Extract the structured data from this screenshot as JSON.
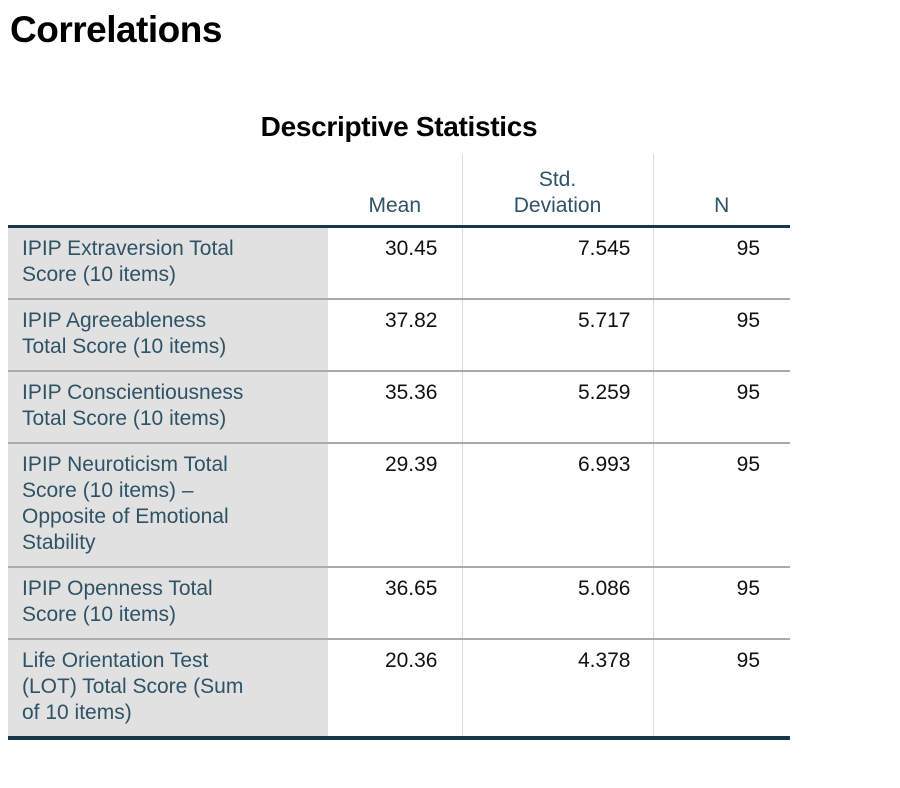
{
  "page": {
    "title": "Correlations"
  },
  "table": {
    "caption": "Descriptive Statistics",
    "stub_header": "",
    "columns": [
      "Mean",
      "Std.\nDeviation",
      "N"
    ],
    "rows": [
      {
        "label": "IPIP Extraversion Total\nScore (10 items)",
        "mean": "30.45",
        "std_deviation": "7.545",
        "n": "95"
      },
      {
        "label": "IPIP Agreeableness\nTotal Score (10 items)",
        "mean": "37.82",
        "std_deviation": "5.717",
        "n": "95"
      },
      {
        "label": "IPIP Conscientiousness\nTotal Score (10 items)",
        "mean": "35.36",
        "std_deviation": "5.259",
        "n": "95"
      },
      {
        "label": "IPIP Neuroticism Total\nScore (10 items) –\nOpposite of Emotional\nStability",
        "mean": "29.39",
        "std_deviation": "6.993",
        "n": "95"
      },
      {
        "label": "IPIP Openness Total\nScore (10 items)",
        "mean": "36.65",
        "std_deviation": "5.086",
        "n": "95"
      },
      {
        "label": "Life Orientation Test\n(LOT) Total Score (Sum\nof 10 items)",
        "mean": "20.36",
        "std_deviation": "4.378",
        "n": "95"
      }
    ]
  },
  "colors": {
    "title_text": "#000000",
    "header_text": "#2E5266",
    "label_text": "#2E5266",
    "value_text": "#111111",
    "dark_border": "#17384A",
    "light_divider": "#D9D9D9",
    "row_divider": "#ABABAB",
    "stub_bg": "#E1E1E1",
    "page_bg": "#FFFFFF"
  }
}
